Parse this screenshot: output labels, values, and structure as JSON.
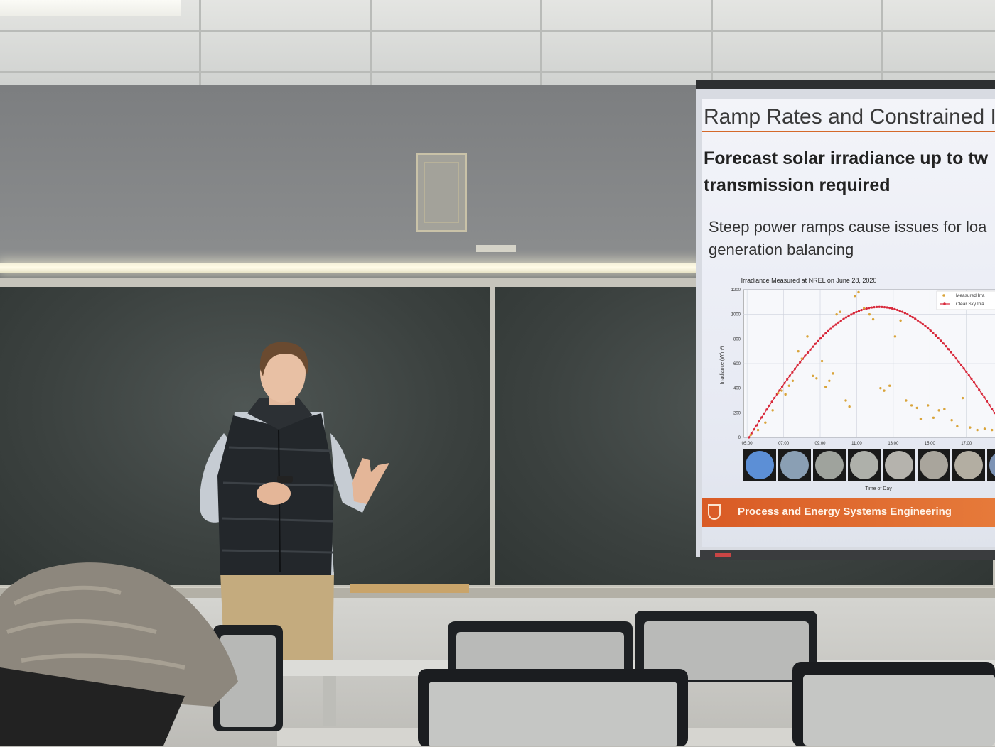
{
  "slide": {
    "title": "Ramp Rates and Constrained I",
    "heading_line1": "Forecast solar irradiance up to tw",
    "heading_line2": "transmission required",
    "body_line1": "Steep power ramps cause issues for loa",
    "body_line2": "generation balancing",
    "footer": "Process and Energy Systems Engineering"
  },
  "chart_data": {
    "type": "scatter",
    "title": "Irradiance Measured at NREL on June 28, 2020",
    "xlabel": "Time of Day",
    "ylabel": "Irradiance (W/m²)",
    "x_ticks": [
      "05:00",
      "07:00",
      "09:00",
      "11:00",
      "13:00",
      "15:00",
      "17:00"
    ],
    "y_ticks": [
      0,
      200,
      400,
      600,
      800,
      1000,
      1200
    ],
    "ylim": [
      0,
      1200
    ],
    "xlim": [
      4.8,
      18.8
    ],
    "grid": true,
    "legend_position": "top-right",
    "legend": [
      "Measured Irra",
      "Clear Sky Irra"
    ],
    "series": [
      {
        "name": "Measured Irra",
        "color": "#d9a43a",
        "points": [
          [
            5.2,
            20
          ],
          [
            5.6,
            60
          ],
          [
            6.0,
            120
          ],
          [
            6.4,
            220
          ],
          [
            6.7,
            360
          ],
          [
            6.9,
            380
          ],
          [
            7.1,
            350
          ],
          [
            7.3,
            420
          ],
          [
            7.5,
            460
          ],
          [
            7.8,
            700
          ],
          [
            8.0,
            640
          ],
          [
            8.3,
            820
          ],
          [
            8.6,
            500
          ],
          [
            8.8,
            480
          ],
          [
            9.1,
            620
          ],
          [
            9.3,
            410
          ],
          [
            9.5,
            460
          ],
          [
            9.7,
            520
          ],
          [
            9.9,
            1000
          ],
          [
            10.1,
            1020
          ],
          [
            10.4,
            300
          ],
          [
            10.6,
            250
          ],
          [
            10.9,
            1150
          ],
          [
            11.1,
            1180
          ],
          [
            11.4,
            1050
          ],
          [
            11.7,
            1000
          ],
          [
            11.9,
            960
          ],
          [
            12.3,
            400
          ],
          [
            12.5,
            380
          ],
          [
            12.8,
            420
          ],
          [
            13.1,
            820
          ],
          [
            13.4,
            950
          ],
          [
            13.7,
            300
          ],
          [
            14.0,
            260
          ],
          [
            14.3,
            240
          ],
          [
            14.5,
            150
          ],
          [
            14.9,
            260
          ],
          [
            15.2,
            160
          ],
          [
            15.5,
            220
          ],
          [
            15.8,
            230
          ],
          [
            16.2,
            140
          ],
          [
            16.5,
            90
          ],
          [
            16.8,
            320
          ],
          [
            17.2,
            80
          ],
          [
            17.6,
            60
          ],
          [
            18.0,
            70
          ],
          [
            18.4,
            60
          ],
          [
            18.7,
            50
          ]
        ]
      },
      {
        "name": "Clear Sky Irra",
        "color": "#d8283a",
        "curve": {
          "start": 5.1,
          "end": 19.4,
          "peak": 1060
        }
      }
    ]
  },
  "sky_images": [
    {
      "color": "#5c8fd6"
    },
    {
      "color": "#8a9fb4"
    },
    {
      "color": "#9fa39d"
    },
    {
      "color": "#aeb0aa"
    },
    {
      "color": "#b5b3ad"
    },
    {
      "color": "#a9a59c"
    },
    {
      "color": "#b3aea2"
    },
    {
      "color": "#7d93b5"
    }
  ]
}
